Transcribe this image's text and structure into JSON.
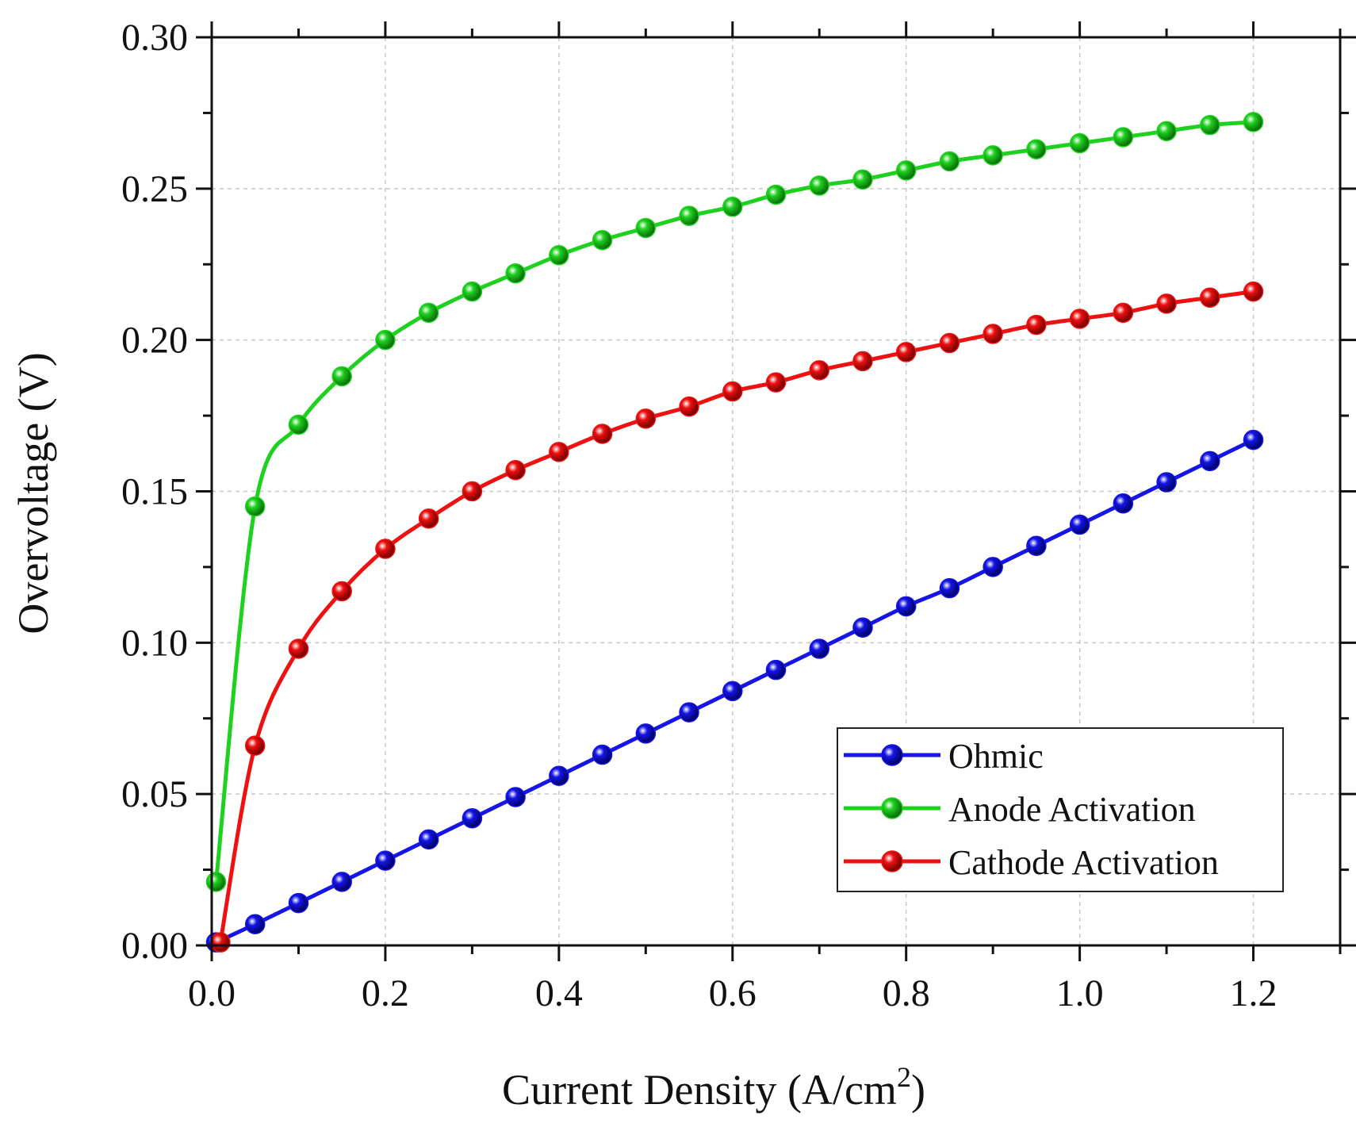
{
  "chart_data": {
    "type": "line",
    "title": "",
    "xlabel": "Current Density (A/cm",
    "xlabel_sup": "2",
    "xlabel_close": ")",
    "ylabel": "Overvoltage (V)",
    "xlim": [
      0,
      1.3
    ],
    "ylim": [
      0,
      0.3
    ],
    "x_ticks": [
      0.0,
      0.2,
      0.4,
      0.6,
      0.8,
      1.0,
      1.2
    ],
    "x_tick_labels": [
      "0.0",
      "0.2",
      "0.4",
      "0.6",
      "0.8",
      "1.0",
      "1.2"
    ],
    "y_ticks": [
      0.0,
      0.05,
      0.1,
      0.15,
      0.2,
      0.25,
      0.3
    ],
    "y_tick_labels": [
      "0.00",
      "0.05",
      "0.10",
      "0.15",
      "0.20",
      "0.25",
      "0.30"
    ],
    "grid": true,
    "legend_position": "bottom-right",
    "series": [
      {
        "name": "Ohmic",
        "color": "#1515e8",
        "x": [
          0.005,
          0.05,
          0.1,
          0.15,
          0.2,
          0.25,
          0.3,
          0.35,
          0.4,
          0.45,
          0.5,
          0.55,
          0.6,
          0.65,
          0.7,
          0.75,
          0.8,
          0.85,
          0.9,
          0.95,
          1.0,
          1.05,
          1.1,
          1.15,
          1.2
        ],
        "y": [
          0.001,
          0.007,
          0.014,
          0.021,
          0.028,
          0.035,
          0.042,
          0.049,
          0.056,
          0.063,
          0.07,
          0.077,
          0.084,
          0.091,
          0.098,
          0.105,
          0.112,
          0.118,
          0.125,
          0.132,
          0.139,
          0.146,
          0.153,
          0.16,
          0.167
        ]
      },
      {
        "name": "Anode Activation",
        "color": "#1fd11f",
        "x": [
          0.005,
          0.05,
          0.1,
          0.15,
          0.2,
          0.25,
          0.3,
          0.35,
          0.4,
          0.45,
          0.5,
          0.55,
          0.6,
          0.65,
          0.7,
          0.75,
          0.8,
          0.85,
          0.9,
          0.95,
          1.0,
          1.05,
          1.1,
          1.15,
          1.2
        ],
        "y": [
          0.021,
          0.145,
          0.172,
          0.188,
          0.2,
          0.209,
          0.216,
          0.222,
          0.228,
          0.233,
          0.237,
          0.241,
          0.244,
          0.248,
          0.251,
          0.253,
          0.256,
          0.259,
          0.261,
          0.263,
          0.265,
          0.267,
          0.269,
          0.271,
          0.272
        ]
      },
      {
        "name": "Cathode Activation",
        "color": "#ee1111",
        "x": [
          0.01,
          0.05,
          0.1,
          0.15,
          0.2,
          0.25,
          0.3,
          0.35,
          0.4,
          0.45,
          0.5,
          0.55,
          0.6,
          0.65,
          0.7,
          0.75,
          0.8,
          0.85,
          0.9,
          0.95,
          1.0,
          1.05,
          1.1,
          1.15,
          1.2
        ],
        "y": [
          0.001,
          0.066,
          0.098,
          0.117,
          0.131,
          0.141,
          0.15,
          0.157,
          0.163,
          0.169,
          0.174,
          0.178,
          0.183,
          0.186,
          0.19,
          0.193,
          0.196,
          0.199,
          0.202,
          0.205,
          0.207,
          0.209,
          0.212,
          0.214,
          0.216
        ]
      }
    ]
  }
}
